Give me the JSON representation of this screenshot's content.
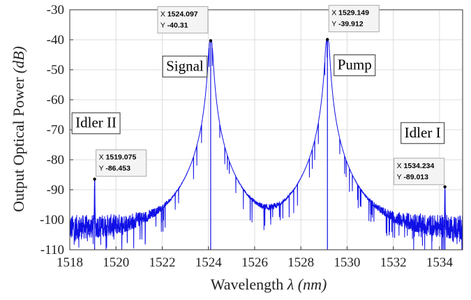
{
  "chart_data": {
    "type": "line",
    "xlabel_text": "Wavelength",
    "xlabel_symbol": "λ",
    "xlabel_unit": "(nm)",
    "ylabel_text": "Output Optical Power",
    "ylabel_unit": "(dB)",
    "xlim": [
      1518,
      1535
    ],
    "ylim": [
      -110,
      -30
    ],
    "xticks": [
      1518,
      1520,
      1522,
      1524,
      1526,
      1528,
      1530,
      1532,
      1534
    ],
    "yticks": [
      -30,
      -40,
      -50,
      -60,
      -70,
      -80,
      -90,
      -100,
      -110
    ],
    "grid": true,
    "series": [
      {
        "color": "#1010e6",
        "noise_floor": -103,
        "peaks": [
          {
            "x": 1519.075,
            "y": -86.453,
            "width": 0.01
          },
          {
            "x": 1524.097,
            "y": -40.31,
            "width": 0.08
          },
          {
            "x": 1529.149,
            "y": -39.912,
            "width": 0.08
          },
          {
            "x": 1534.234,
            "y": -89.013,
            "width": 0.01
          }
        ]
      }
    ],
    "annotations": [
      {
        "label": "Idler II",
        "x": 1519.075,
        "y": -86.453,
        "tip_x": "1519.075",
        "tip_y": "-86.453"
      },
      {
        "label": "Signal",
        "x": 1524.097,
        "y": -40.31,
        "tip_x": "1524.097",
        "tip_y": "-40.31"
      },
      {
        "label": "Pump",
        "x": 1529.149,
        "y": -39.912,
        "tip_x": "1529.149",
        "tip_y": "-39.912"
      },
      {
        "label": "Idler I",
        "x": 1534.234,
        "y": -89.013,
        "tip_x": "1534.234",
        "tip_y": "-89.013"
      }
    ],
    "tip_x_prefix": "X",
    "tip_y_prefix": "Y"
  }
}
